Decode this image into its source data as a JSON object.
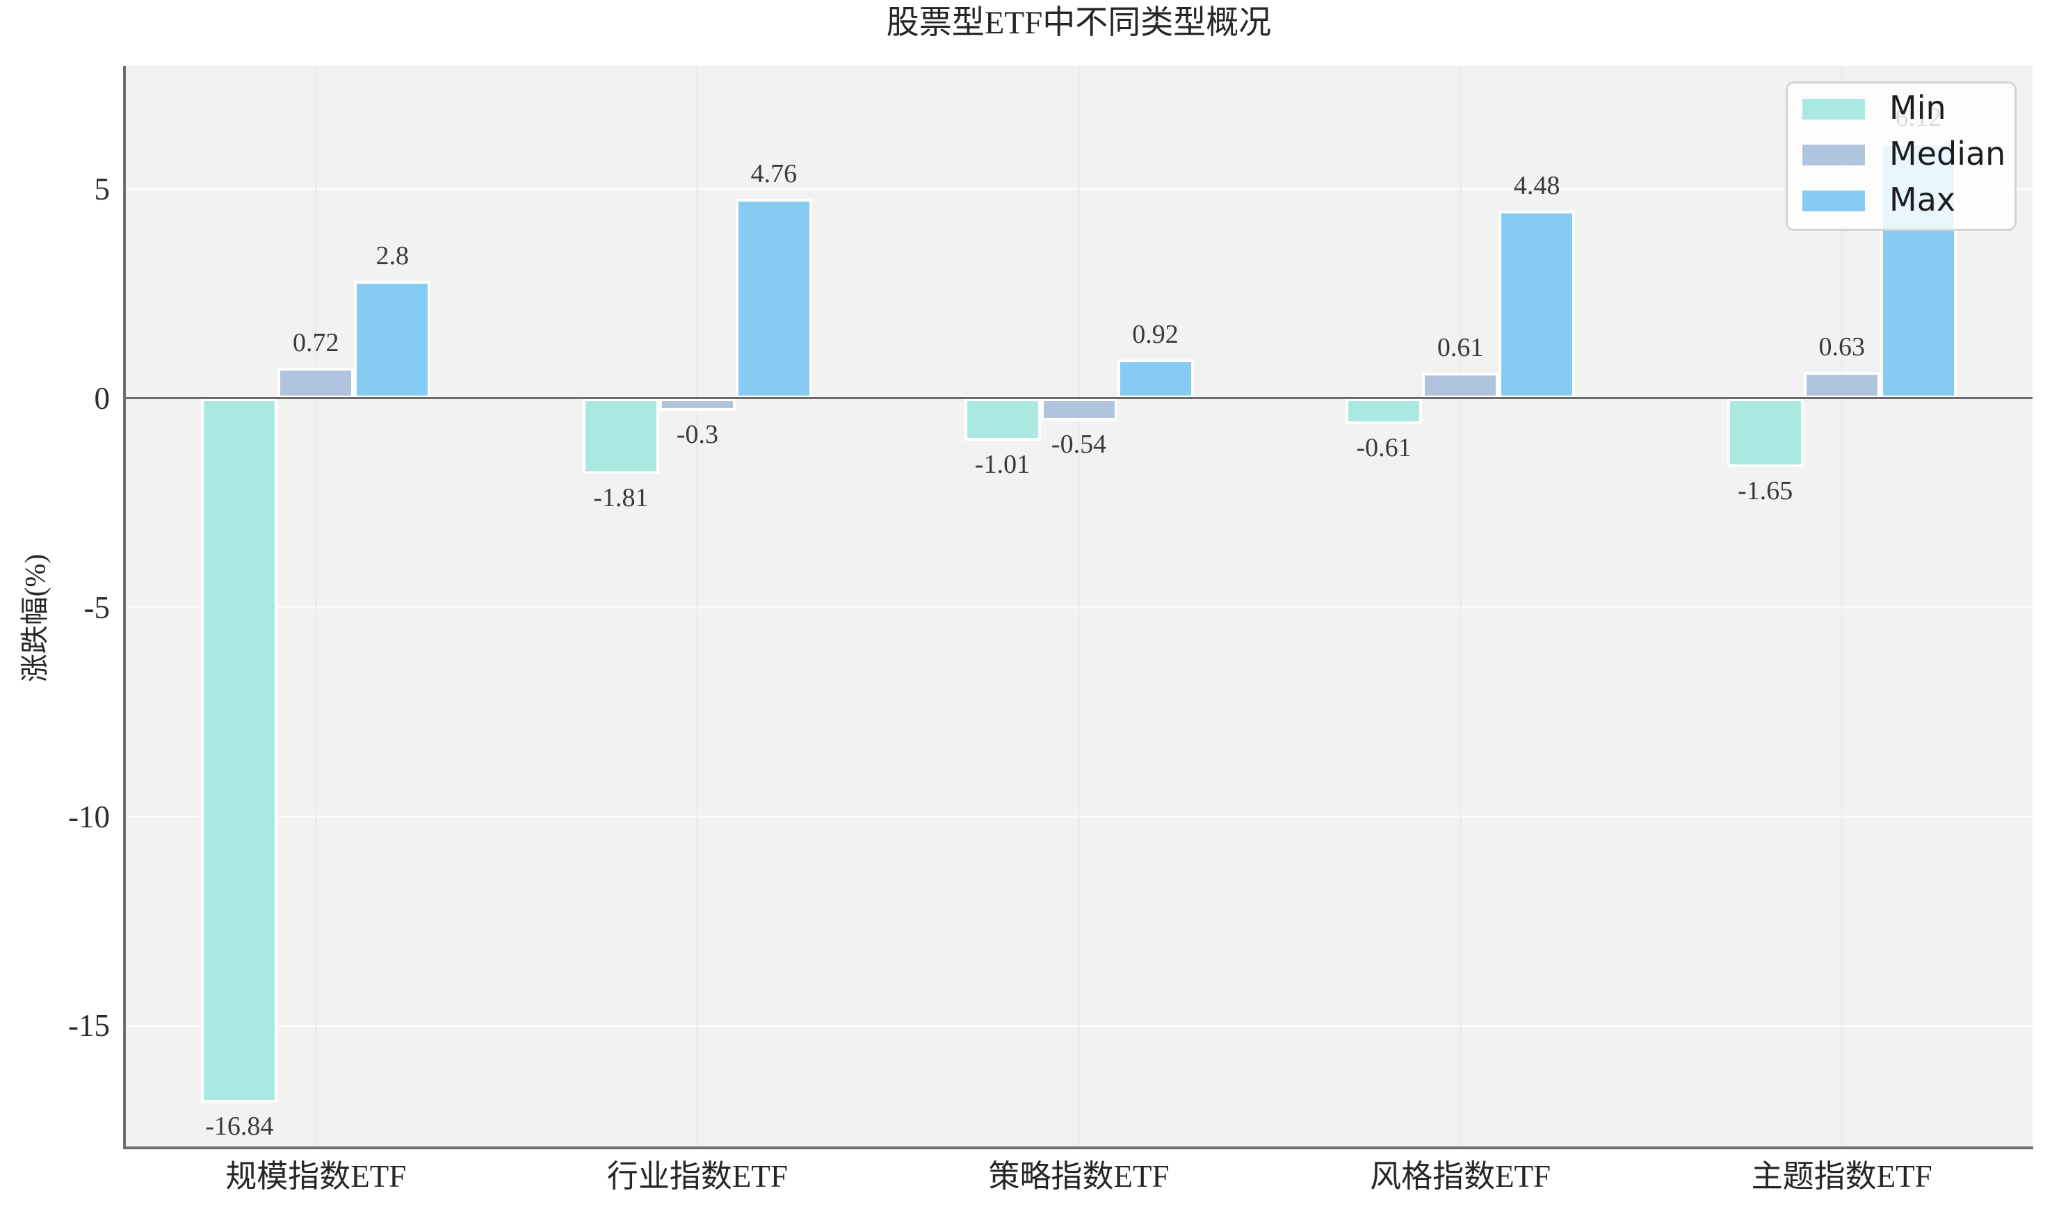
{
  "title": "股票型ETF中不同类型概况",
  "ylabel": "涨跌幅(%)",
  "legend": {
    "position": "upper right",
    "items": [
      {
        "label": "Min",
        "color": "#A9E9E2"
      },
      {
        "label": "Median",
        "color": "#B0C4DE"
      },
      {
        "label": "Max",
        "color": "#86CBF1"
      }
    ]
  },
  "colors": {
    "plot_background": "#F2F2F2",
    "figure_background": "#FFFFFF",
    "grid_horizontal": "#FBFBFB",
    "grid_vertical": "#ECECEC",
    "zero_line": "#6B6B6B",
    "spine": "#6E6E6E",
    "bar_edge": "#FFFFFF",
    "text": "#262626"
  },
  "chart_data": {
    "type": "bar",
    "title": "股票型ETF中不同类型概况",
    "xlabel": "",
    "ylabel": "涨跌幅(%)",
    "categories": [
      "规模指数ETF",
      "行业指数ETF",
      "策略指数ETF",
      "风格指数ETF",
      "主题指数ETF"
    ],
    "series": [
      {
        "name": "Min",
        "color": "#A9E9E2",
        "values": [
          -16.84,
          -1.81,
          -1.01,
          -0.61,
          -1.65
        ],
        "labels": [
          "-16.84",
          "-1.81",
          "-1.01",
          "-0.61",
          "-1.65"
        ]
      },
      {
        "name": "Median",
        "color": "#B0C4DE",
        "values": [
          0.72,
          -0.3,
          -0.54,
          0.61,
          0.63
        ],
        "labels": [
          "0.72",
          "-0.3",
          "-0.54",
          "0.61",
          "0.63"
        ]
      },
      {
        "name": "Max",
        "color": "#86CBF1",
        "values": [
          2.8,
          4.76,
          0.92,
          4.48,
          6.12
        ],
        "labels": [
          "2.8",
          "4.76",
          "0.92",
          "4.48",
          "6.12"
        ]
      }
    ],
    "yticks": [
      5,
      0,
      -5,
      -10,
      -15
    ],
    "ytick_labels": [
      "5",
      "0",
      "-5",
      "-10",
      "-15"
    ],
    "ylim": [
      -17.9,
      7.94
    ],
    "grid": true,
    "legend_position": "upper right"
  }
}
